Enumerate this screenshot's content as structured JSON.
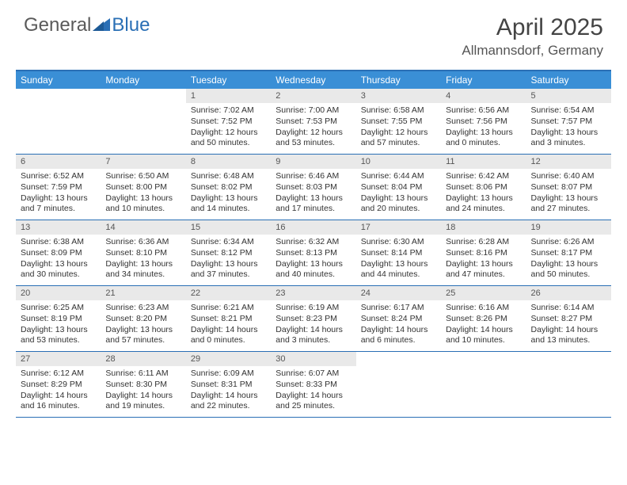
{
  "logo": {
    "text1": "General",
    "text2": "Blue"
  },
  "title": "April 2025",
  "location": "Allmannsdorf, Germany",
  "colors": {
    "header_bg": "#3a8fd6",
    "border": "#2a6fb5",
    "daynum_bg": "#e9e9e9",
    "text": "#333333",
    "logo_gray": "#5a5a5a",
    "logo_blue": "#2a6fb5"
  },
  "weekdays": [
    "Sunday",
    "Monday",
    "Tuesday",
    "Wednesday",
    "Thursday",
    "Friday",
    "Saturday"
  ],
  "weeks": [
    [
      null,
      null,
      {
        "n": "1",
        "sr": "Sunrise: 7:02 AM",
        "ss": "Sunset: 7:52 PM",
        "dl": "Daylight: 12 hours and 50 minutes."
      },
      {
        "n": "2",
        "sr": "Sunrise: 7:00 AM",
        "ss": "Sunset: 7:53 PM",
        "dl": "Daylight: 12 hours and 53 minutes."
      },
      {
        "n": "3",
        "sr": "Sunrise: 6:58 AM",
        "ss": "Sunset: 7:55 PM",
        "dl": "Daylight: 12 hours and 57 minutes."
      },
      {
        "n": "4",
        "sr": "Sunrise: 6:56 AM",
        "ss": "Sunset: 7:56 PM",
        "dl": "Daylight: 13 hours and 0 minutes."
      },
      {
        "n": "5",
        "sr": "Sunrise: 6:54 AM",
        "ss": "Sunset: 7:57 PM",
        "dl": "Daylight: 13 hours and 3 minutes."
      }
    ],
    [
      {
        "n": "6",
        "sr": "Sunrise: 6:52 AM",
        "ss": "Sunset: 7:59 PM",
        "dl": "Daylight: 13 hours and 7 minutes."
      },
      {
        "n": "7",
        "sr": "Sunrise: 6:50 AM",
        "ss": "Sunset: 8:00 PM",
        "dl": "Daylight: 13 hours and 10 minutes."
      },
      {
        "n": "8",
        "sr": "Sunrise: 6:48 AM",
        "ss": "Sunset: 8:02 PM",
        "dl": "Daylight: 13 hours and 14 minutes."
      },
      {
        "n": "9",
        "sr": "Sunrise: 6:46 AM",
        "ss": "Sunset: 8:03 PM",
        "dl": "Daylight: 13 hours and 17 minutes."
      },
      {
        "n": "10",
        "sr": "Sunrise: 6:44 AM",
        "ss": "Sunset: 8:04 PM",
        "dl": "Daylight: 13 hours and 20 minutes."
      },
      {
        "n": "11",
        "sr": "Sunrise: 6:42 AM",
        "ss": "Sunset: 8:06 PM",
        "dl": "Daylight: 13 hours and 24 minutes."
      },
      {
        "n": "12",
        "sr": "Sunrise: 6:40 AM",
        "ss": "Sunset: 8:07 PM",
        "dl": "Daylight: 13 hours and 27 minutes."
      }
    ],
    [
      {
        "n": "13",
        "sr": "Sunrise: 6:38 AM",
        "ss": "Sunset: 8:09 PM",
        "dl": "Daylight: 13 hours and 30 minutes."
      },
      {
        "n": "14",
        "sr": "Sunrise: 6:36 AM",
        "ss": "Sunset: 8:10 PM",
        "dl": "Daylight: 13 hours and 34 minutes."
      },
      {
        "n": "15",
        "sr": "Sunrise: 6:34 AM",
        "ss": "Sunset: 8:12 PM",
        "dl": "Daylight: 13 hours and 37 minutes."
      },
      {
        "n": "16",
        "sr": "Sunrise: 6:32 AM",
        "ss": "Sunset: 8:13 PM",
        "dl": "Daylight: 13 hours and 40 minutes."
      },
      {
        "n": "17",
        "sr": "Sunrise: 6:30 AM",
        "ss": "Sunset: 8:14 PM",
        "dl": "Daylight: 13 hours and 44 minutes."
      },
      {
        "n": "18",
        "sr": "Sunrise: 6:28 AM",
        "ss": "Sunset: 8:16 PM",
        "dl": "Daylight: 13 hours and 47 minutes."
      },
      {
        "n": "19",
        "sr": "Sunrise: 6:26 AM",
        "ss": "Sunset: 8:17 PM",
        "dl": "Daylight: 13 hours and 50 minutes."
      }
    ],
    [
      {
        "n": "20",
        "sr": "Sunrise: 6:25 AM",
        "ss": "Sunset: 8:19 PM",
        "dl": "Daylight: 13 hours and 53 minutes."
      },
      {
        "n": "21",
        "sr": "Sunrise: 6:23 AM",
        "ss": "Sunset: 8:20 PM",
        "dl": "Daylight: 13 hours and 57 minutes."
      },
      {
        "n": "22",
        "sr": "Sunrise: 6:21 AM",
        "ss": "Sunset: 8:21 PM",
        "dl": "Daylight: 14 hours and 0 minutes."
      },
      {
        "n": "23",
        "sr": "Sunrise: 6:19 AM",
        "ss": "Sunset: 8:23 PM",
        "dl": "Daylight: 14 hours and 3 minutes."
      },
      {
        "n": "24",
        "sr": "Sunrise: 6:17 AM",
        "ss": "Sunset: 8:24 PM",
        "dl": "Daylight: 14 hours and 6 minutes."
      },
      {
        "n": "25",
        "sr": "Sunrise: 6:16 AM",
        "ss": "Sunset: 8:26 PM",
        "dl": "Daylight: 14 hours and 10 minutes."
      },
      {
        "n": "26",
        "sr": "Sunrise: 6:14 AM",
        "ss": "Sunset: 8:27 PM",
        "dl": "Daylight: 14 hours and 13 minutes."
      }
    ],
    [
      {
        "n": "27",
        "sr": "Sunrise: 6:12 AM",
        "ss": "Sunset: 8:29 PM",
        "dl": "Daylight: 14 hours and 16 minutes."
      },
      {
        "n": "28",
        "sr": "Sunrise: 6:11 AM",
        "ss": "Sunset: 8:30 PM",
        "dl": "Daylight: 14 hours and 19 minutes."
      },
      {
        "n": "29",
        "sr": "Sunrise: 6:09 AM",
        "ss": "Sunset: 8:31 PM",
        "dl": "Daylight: 14 hours and 22 minutes."
      },
      {
        "n": "30",
        "sr": "Sunrise: 6:07 AM",
        "ss": "Sunset: 8:33 PM",
        "dl": "Daylight: 14 hours and 25 minutes."
      },
      null,
      null,
      null
    ]
  ]
}
